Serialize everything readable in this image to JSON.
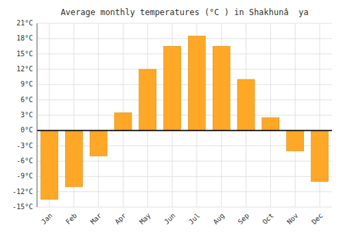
{
  "chart_data": {
    "type": "bar",
    "title": "Average monthly temperatures (°C ) in Shakhunâ  ya",
    "categories": [
      "Jan",
      "Feb",
      "Mar",
      "Apr",
      "May",
      "Jun",
      "Jul",
      "Aug",
      "Sep",
      "Oct",
      "Nov",
      "Dec"
    ],
    "values": [
      -13.5,
      -11.0,
      -5.0,
      3.5,
      12.0,
      16.5,
      18.5,
      16.5,
      10.0,
      2.5,
      -4.0,
      -10.0
    ],
    "color": "#FFA726",
    "ylim": [
      -15,
      21
    ],
    "yticks": [
      {
        "value": -15,
        "label": "-15°C"
      },
      {
        "value": -12,
        "label": "-12°C"
      },
      {
        "value": -9,
        "label": "-9°C"
      },
      {
        "value": -6,
        "label": "-6°C"
      },
      {
        "value": -3,
        "label": "-3°C"
      },
      {
        "value": 0,
        "label": "0°C"
      },
      {
        "value": 3,
        "label": "3°C"
      },
      {
        "value": 6,
        "label": "6°C"
      },
      {
        "value": 9,
        "label": "9°C"
      },
      {
        "value": 12,
        "label": "12°C"
      },
      {
        "value": 15,
        "label": "15°C"
      },
      {
        "value": 18,
        "label": "18°C"
      },
      {
        "value": 21,
        "label": "21°C"
      }
    ],
    "grid": true
  }
}
